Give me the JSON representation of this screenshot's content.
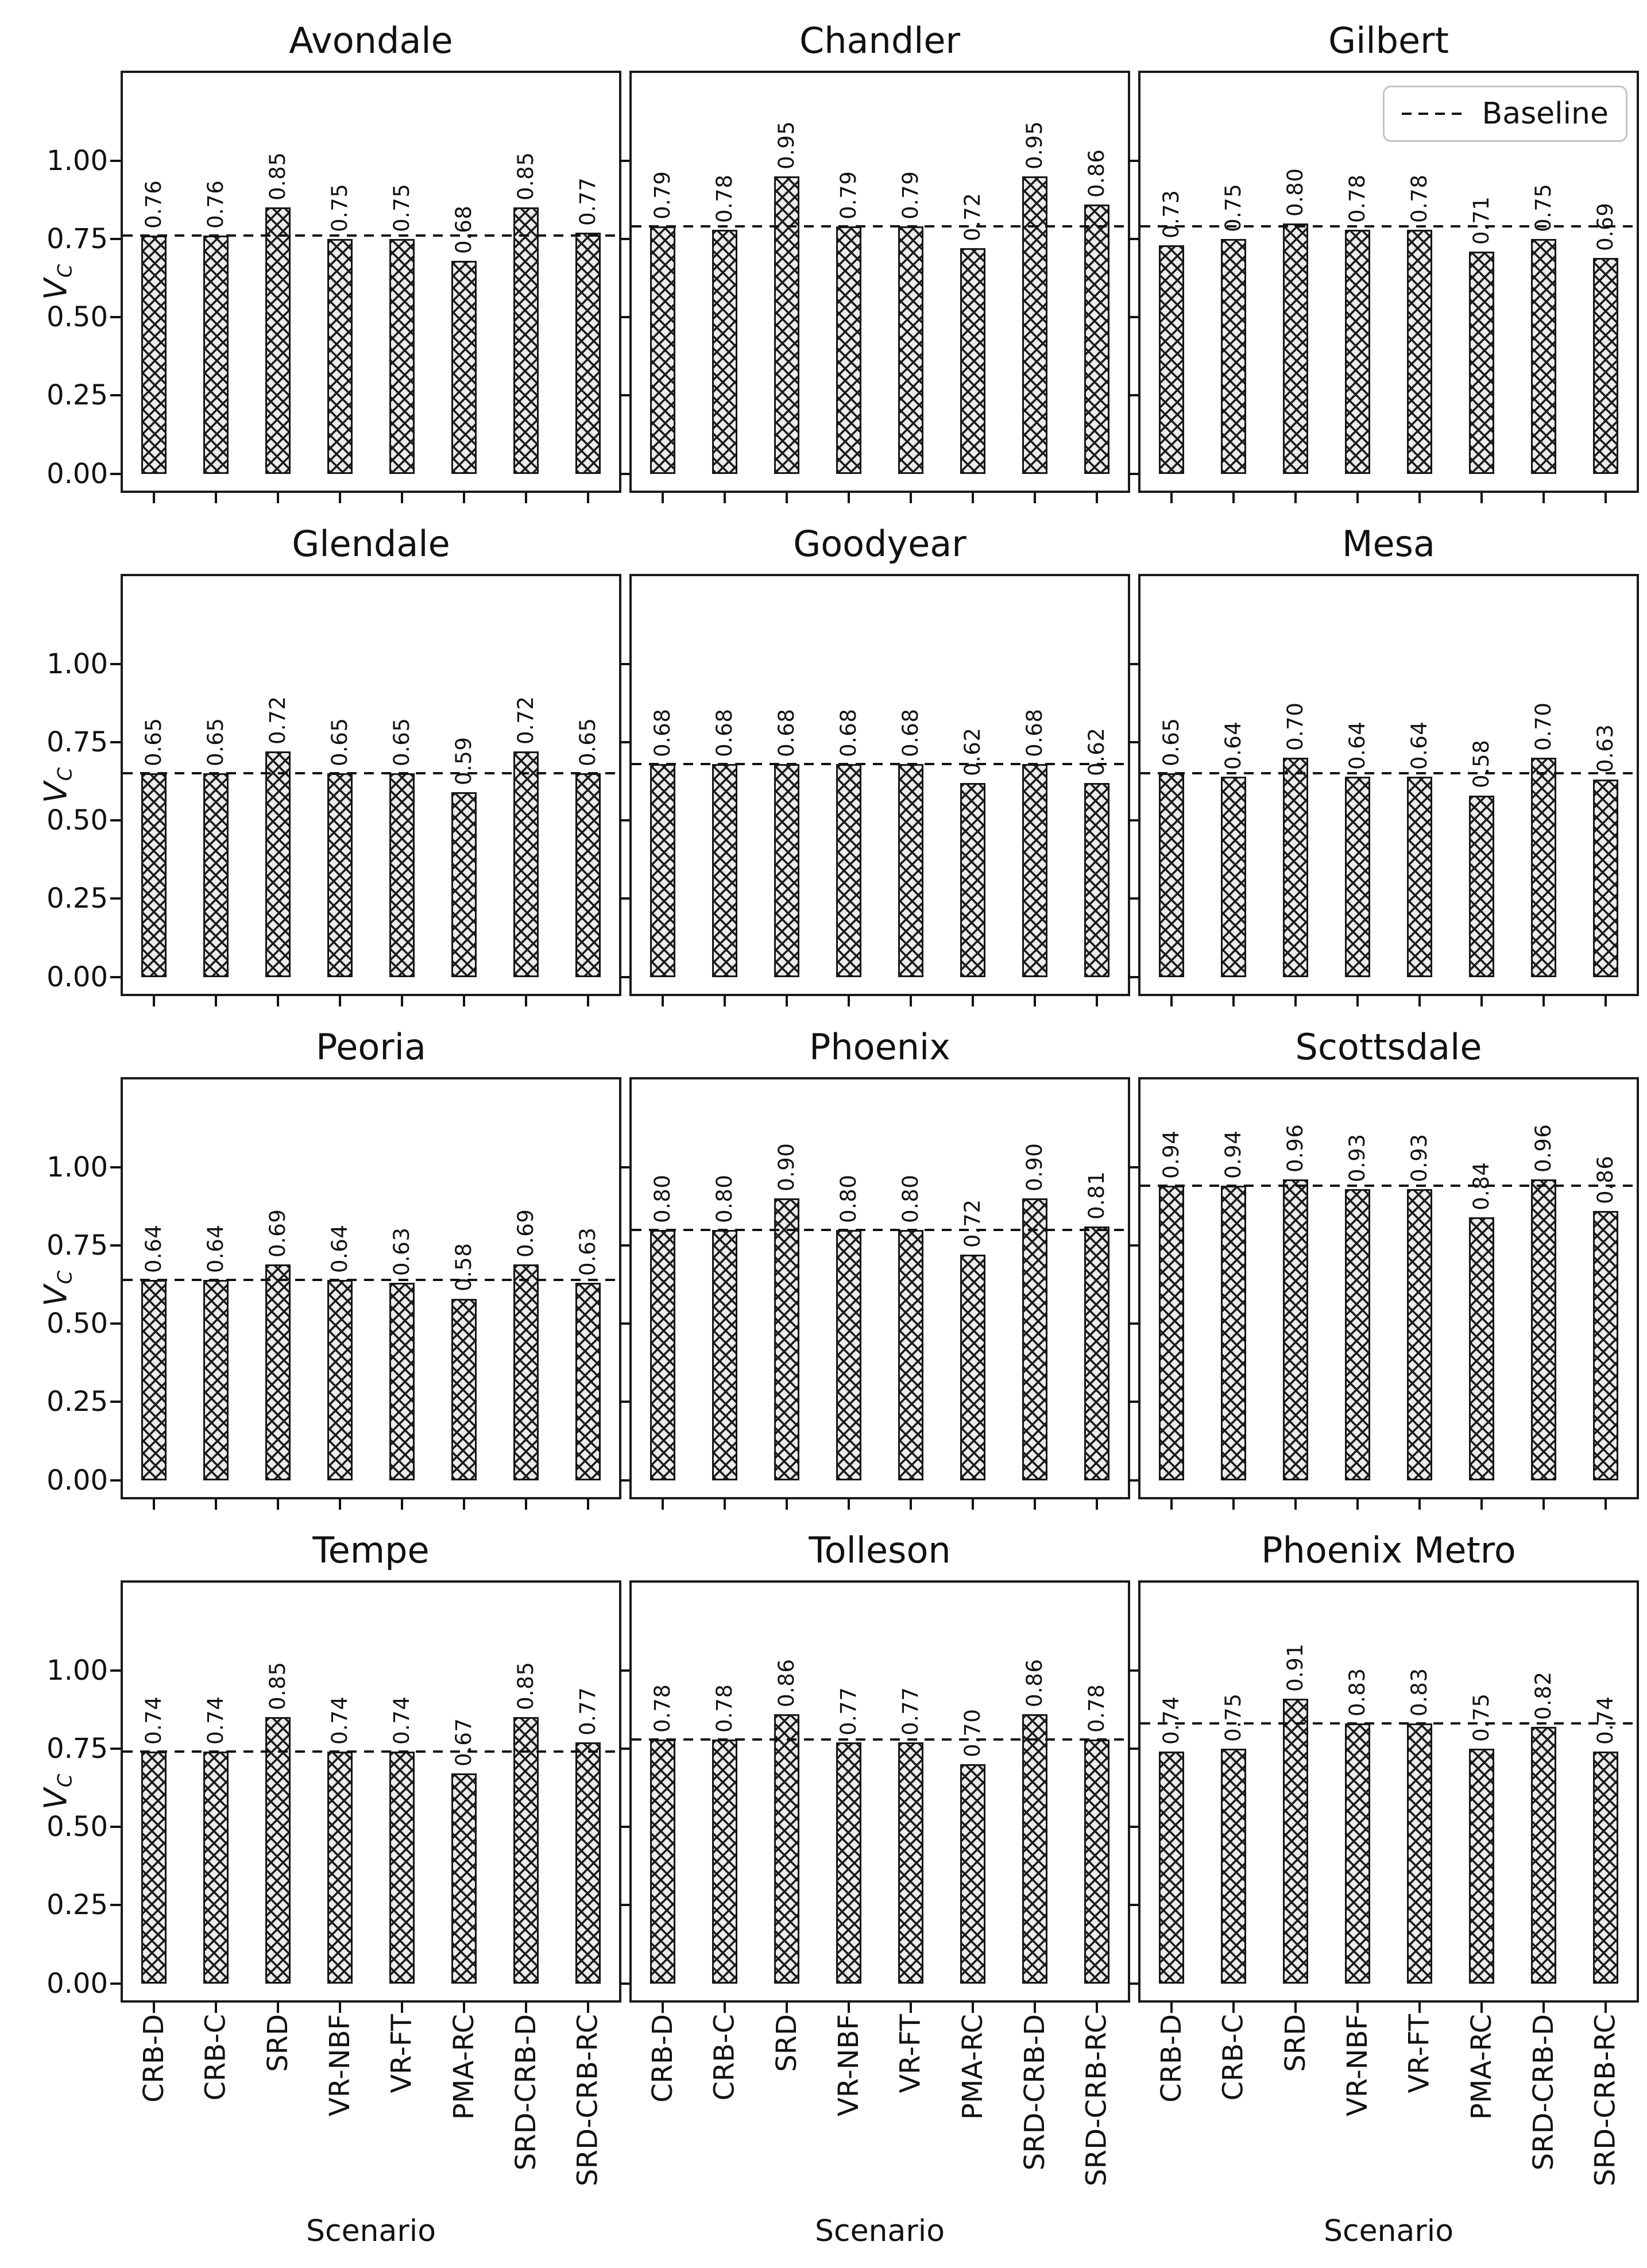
{
  "chart_data": {
    "type": "bar",
    "xlabel": "Scenario",
    "ylabel_base": "V",
    "ylabel_sub": "C",
    "categories": [
      "CRB-D",
      "CRB-C",
      "SRD",
      "VR-NBF",
      "VR-FT",
      "PMA-RC",
      "SRD-CRB-D",
      "SRD-CRB-RC"
    ],
    "ytick_values": [
      0.0,
      0.25,
      0.5,
      0.75,
      1.0
    ],
    "ytick_labels": [
      "0.00",
      "0.25",
      "0.50",
      "0.75",
      "1.00"
    ],
    "ylim": [
      -0.054,
      1.28
    ],
    "grid_layout": {
      "rows": 4,
      "cols": 3
    },
    "legend": {
      "label": "Baseline",
      "line_style": "dashed",
      "subplot_index": 2,
      "location": "upper-right"
    },
    "bar_style": {
      "fill": "#ececec",
      "hatch": "diagonal-crosshatch",
      "edge": "#161616"
    },
    "subplots": [
      {
        "title": "Avondale",
        "values": [
          0.76,
          0.76,
          0.85,
          0.75,
          0.75,
          0.68,
          0.85,
          0.77
        ],
        "labels": [
          "0.76",
          "0.76",
          "0.85",
          "0.75",
          "0.75",
          "0.68",
          "0.85",
          "0.77"
        ],
        "baseline": 0.76
      },
      {
        "title": "Chandler",
        "values": [
          0.79,
          0.78,
          0.95,
          0.79,
          0.79,
          0.72,
          0.95,
          0.86
        ],
        "labels": [
          "0.79",
          "0.78",
          "0.95",
          "0.79",
          "0.79",
          "0.72",
          "0.95",
          "0.86"
        ],
        "baseline": 0.79
      },
      {
        "title": "Gilbert",
        "values": [
          0.73,
          0.75,
          0.8,
          0.78,
          0.78,
          0.71,
          0.75,
          0.69
        ],
        "labels": [
          "0.73",
          "0.75",
          "0.80",
          "0.78",
          "0.78",
          "0.71",
          "0.75",
          "0.69"
        ],
        "baseline": 0.79
      },
      {
        "title": "Glendale",
        "values": [
          0.65,
          0.65,
          0.72,
          0.65,
          0.65,
          0.59,
          0.72,
          0.65
        ],
        "labels": [
          "0.65",
          "0.65",
          "0.72",
          "0.65",
          "0.65",
          "0.59",
          "0.72",
          "0.65"
        ],
        "baseline": 0.65
      },
      {
        "title": "Goodyear",
        "values": [
          0.68,
          0.68,
          0.68,
          0.68,
          0.68,
          0.62,
          0.68,
          0.62
        ],
        "labels": [
          "0.68",
          "0.68",
          "0.68",
          "0.68",
          "0.68",
          "0.62",
          "0.68",
          "0.62"
        ],
        "baseline": 0.68
      },
      {
        "title": "Mesa",
        "values": [
          0.65,
          0.64,
          0.7,
          0.64,
          0.64,
          0.58,
          0.7,
          0.63
        ],
        "labels": [
          "0.65",
          "0.64",
          "0.70",
          "0.64",
          "0.64",
          "0.58",
          "0.70",
          "0.63"
        ],
        "baseline": 0.65
      },
      {
        "title": "Peoria",
        "values": [
          0.64,
          0.64,
          0.69,
          0.64,
          0.63,
          0.58,
          0.69,
          0.63
        ],
        "labels": [
          "0.64",
          "0.64",
          "0.69",
          "0.64",
          "0.63",
          "0.58",
          "0.69",
          "0.63"
        ],
        "baseline": 0.64
      },
      {
        "title": "Phoenix",
        "values": [
          0.8,
          0.8,
          0.9,
          0.8,
          0.8,
          0.72,
          0.9,
          0.81
        ],
        "labels": [
          "0.80",
          "0.80",
          "0.90",
          "0.80",
          "0.80",
          "0.72",
          "0.90",
          "0.81"
        ],
        "baseline": 0.8
      },
      {
        "title": "Scottsdale",
        "values": [
          0.94,
          0.94,
          0.96,
          0.93,
          0.93,
          0.84,
          0.96,
          0.86
        ],
        "labels": [
          "0.94",
          "0.94",
          "0.96",
          "0.93",
          "0.93",
          "0.84",
          "0.96",
          "0.86"
        ],
        "baseline": 0.94
      },
      {
        "title": "Tempe",
        "values": [
          0.74,
          0.74,
          0.85,
          0.74,
          0.74,
          0.67,
          0.85,
          0.77
        ],
        "labels": [
          "0.74",
          "0.74",
          "0.85",
          "0.74",
          "0.74",
          "0.67",
          "0.85",
          "0.77"
        ],
        "baseline": 0.74
      },
      {
        "title": "Tolleson",
        "values": [
          0.78,
          0.78,
          0.86,
          0.77,
          0.77,
          0.7,
          0.86,
          0.78
        ],
        "labels": [
          "0.78",
          "0.78",
          "0.86",
          "0.77",
          "0.77",
          "0.70",
          "0.86",
          "0.78"
        ],
        "baseline": 0.78
      },
      {
        "title": "Phoenix Metro",
        "values": [
          0.74,
          0.75,
          0.91,
          0.83,
          0.83,
          0.75,
          0.82,
          0.74
        ],
        "labels": [
          "0.74",
          "0.75",
          "0.91",
          "0.83",
          "0.83",
          "0.75",
          "0.82",
          "0.74"
        ],
        "baseline": 0.83
      }
    ]
  }
}
